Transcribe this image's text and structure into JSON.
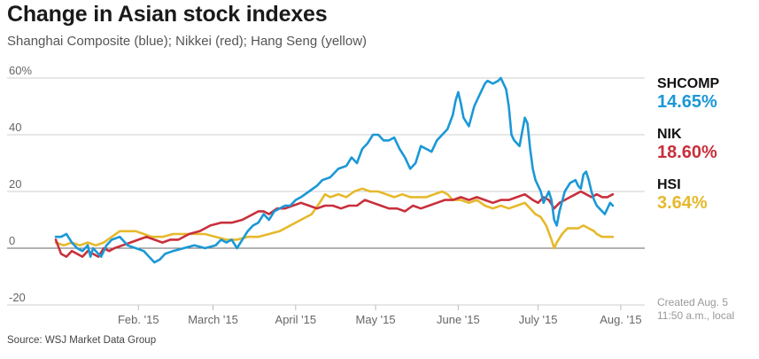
{
  "chart_data": {
    "type": "line",
    "title": "Change in Asian stock indexes",
    "subtitle": "Shanghai Composite (blue); Nikkei (red); Hang Seng (yellow)",
    "ylim": [
      -20,
      60
    ],
    "y_ticks": [
      60,
      40,
      20,
      0,
      -20
    ],
    "y_tick_labels": [
      "60%",
      "40",
      "20",
      "0",
      "-20"
    ],
    "x_range": [
      0,
      221
    ],
    "x_ticks": [
      {
        "label": "Feb. '15",
        "x": 31
      },
      {
        "label": "March '15",
        "x": 59
      },
      {
        "label": "April '15",
        "x": 90
      },
      {
        "label": "May '15",
        "x": 120
      },
      {
        "label": "June '15",
        "x": 151
      },
      {
        "label": "July '15",
        "x": 181
      },
      {
        "label": "Aug. '15",
        "x": 212
      }
    ],
    "series": [
      {
        "name": "SHCOMP",
        "color": "#1b98d6",
        "points": [
          [
            0,
            4
          ],
          [
            2,
            4
          ],
          [
            4,
            5
          ],
          [
            6,
            2
          ],
          [
            8,
            0
          ],
          [
            10,
            -1
          ],
          [
            12,
            1
          ],
          [
            13,
            -3
          ],
          [
            14,
            0
          ],
          [
            16,
            -2
          ],
          [
            17,
            -3
          ],
          [
            19,
            1
          ],
          [
            21,
            3
          ],
          [
            24,
            4
          ],
          [
            27,
            1
          ],
          [
            30,
            0
          ],
          [
            33,
            -1
          ],
          [
            35,
            -3
          ],
          [
            37,
            -5
          ],
          [
            39,
            -4
          ],
          [
            41,
            -2
          ],
          [
            44,
            -1
          ],
          [
            48,
            0
          ],
          [
            52,
            1
          ],
          [
            56,
            0
          ],
          [
            60,
            1
          ],
          [
            62,
            3
          ],
          [
            64,
            2
          ],
          [
            66,
            3
          ],
          [
            68,
            0
          ],
          [
            70,
            3
          ],
          [
            72,
            6
          ],
          [
            74,
            8
          ],
          [
            76,
            9
          ],
          [
            78,
            12
          ],
          [
            80,
            10
          ],
          [
            82,
            13
          ],
          [
            84,
            14
          ],
          [
            86,
            15
          ],
          [
            88,
            15
          ],
          [
            90,
            17
          ],
          [
            92,
            18
          ],
          [
            95,
            20
          ],
          [
            98,
            22
          ],
          [
            100,
            24
          ],
          [
            103,
            25
          ],
          [
            106,
            28
          ],
          [
            109,
            29
          ],
          [
            111,
            32
          ],
          [
            113,
            30
          ],
          [
            115,
            35
          ],
          [
            117,
            37
          ],
          [
            119,
            40
          ],
          [
            121,
            40
          ],
          [
            123,
            38
          ],
          [
            125,
            38
          ],
          [
            127,
            39
          ],
          [
            129,
            35
          ],
          [
            131,
            32
          ],
          [
            133,
            28
          ],
          [
            135,
            30
          ],
          [
            137,
            36
          ],
          [
            139,
            35
          ],
          [
            141,
            34
          ],
          [
            143,
            38
          ],
          [
            145,
            40
          ],
          [
            147,
            42
          ],
          [
            149,
            47
          ],
          [
            150,
            52
          ],
          [
            151,
            55
          ],
          [
            152,
            51
          ],
          [
            153,
            46
          ],
          [
            155,
            43
          ],
          [
            157,
            50
          ],
          [
            159,
            54
          ],
          [
            161,
            58
          ],
          [
            162,
            59
          ],
          [
            164,
            58
          ],
          [
            166,
            59
          ],
          [
            167,
            60
          ],
          [
            169,
            56
          ],
          [
            170,
            50
          ],
          [
            171,
            40
          ],
          [
            172,
            38
          ],
          [
            174,
            36
          ],
          [
            176,
            46
          ],
          [
            177,
            44
          ],
          [
            178,
            35
          ],
          [
            179,
            28
          ],
          [
            180,
            24
          ],
          [
            182,
            20
          ],
          [
            183,
            16
          ],
          [
            185,
            20
          ],
          [
            186,
            17
          ],
          [
            187,
            10
          ],
          [
            188,
            8
          ],
          [
            189,
            13
          ],
          [
            191,
            20
          ],
          [
            193,
            23
          ],
          [
            195,
            24
          ],
          [
            196,
            22
          ],
          [
            197,
            21
          ],
          [
            198,
            26
          ],
          [
            199,
            27
          ],
          [
            200,
            24
          ],
          [
            201,
            20
          ],
          [
            202,
            17
          ],
          [
            203,
            15
          ],
          [
            204,
            14
          ],
          [
            205,
            13
          ],
          [
            206,
            12
          ],
          [
            207,
            14
          ],
          [
            208,
            16
          ],
          [
            209,
            15
          ]
        ]
      },
      {
        "name": "NIK",
        "color": "#c8303c",
        "points": [
          [
            0,
            3
          ],
          [
            2,
            -2
          ],
          [
            4,
            -3
          ],
          [
            6,
            -1
          ],
          [
            8,
            -2
          ],
          [
            10,
            -3
          ],
          [
            12,
            -1
          ],
          [
            14,
            -2
          ],
          [
            16,
            -3
          ],
          [
            18,
            0
          ],
          [
            20,
            -1
          ],
          [
            22,
            0
          ],
          [
            25,
            1
          ],
          [
            28,
            2
          ],
          [
            31,
            3
          ],
          [
            34,
            4
          ],
          [
            37,
            3
          ],
          [
            40,
            2
          ],
          [
            43,
            3
          ],
          [
            46,
            3
          ],
          [
            50,
            5
          ],
          [
            54,
            6
          ],
          [
            58,
            8
          ],
          [
            62,
            9
          ],
          [
            66,
            9
          ],
          [
            70,
            10
          ],
          [
            74,
            12
          ],
          [
            76,
            13
          ],
          [
            78,
            13
          ],
          [
            80,
            12
          ],
          [
            83,
            14
          ],
          [
            86,
            14
          ],
          [
            89,
            15
          ],
          [
            92,
            16
          ],
          [
            95,
            15
          ],
          [
            98,
            14
          ],
          [
            101,
            15
          ],
          [
            104,
            15
          ],
          [
            107,
            14
          ],
          [
            110,
            15
          ],
          [
            113,
            15
          ],
          [
            116,
            17
          ],
          [
            119,
            16
          ],
          [
            122,
            15
          ],
          [
            125,
            14
          ],
          [
            128,
            14
          ],
          [
            131,
            13
          ],
          [
            134,
            15
          ],
          [
            137,
            14
          ],
          [
            140,
            15
          ],
          [
            143,
            16
          ],
          [
            146,
            17
          ],
          [
            149,
            17
          ],
          [
            152,
            18
          ],
          [
            155,
            17
          ],
          [
            158,
            18
          ],
          [
            161,
            17
          ],
          [
            164,
            16
          ],
          [
            167,
            17
          ],
          [
            170,
            17
          ],
          [
            173,
            18
          ],
          [
            176,
            19
          ],
          [
            179,
            17
          ],
          [
            181,
            16
          ],
          [
            183,
            18
          ],
          [
            185,
            17
          ],
          [
            187,
            14
          ],
          [
            189,
            16
          ],
          [
            191,
            17
          ],
          [
            193,
            18
          ],
          [
            195,
            19
          ],
          [
            197,
            20
          ],
          [
            199,
            19
          ],
          [
            201,
            18
          ],
          [
            203,
            19
          ],
          [
            205,
            18
          ],
          [
            207,
            18
          ],
          [
            209,
            19
          ]
        ]
      },
      {
        "name": "HSI",
        "color": "#e6b92c",
        "points": [
          [
            0,
            2
          ],
          [
            3,
            1
          ],
          [
            6,
            2
          ],
          [
            9,
            1
          ],
          [
            12,
            2
          ],
          [
            15,
            1
          ],
          [
            18,
            2
          ],
          [
            21,
            4
          ],
          [
            24,
            6
          ],
          [
            27,
            6
          ],
          [
            30,
            6
          ],
          [
            33,
            5
          ],
          [
            36,
            4
          ],
          [
            40,
            4
          ],
          [
            44,
            5
          ],
          [
            48,
            5
          ],
          [
            52,
            5
          ],
          [
            56,
            5
          ],
          [
            60,
            4
          ],
          [
            64,
            3
          ],
          [
            68,
            3
          ],
          [
            72,
            4
          ],
          [
            76,
            4
          ],
          [
            80,
            5
          ],
          [
            84,
            6
          ],
          [
            88,
            8
          ],
          [
            92,
            10
          ],
          [
            96,
            12
          ],
          [
            99,
            16
          ],
          [
            101,
            19
          ],
          [
            103,
            18
          ],
          [
            106,
            19
          ],
          [
            109,
            18
          ],
          [
            112,
            20
          ],
          [
            115,
            21
          ],
          [
            118,
            20
          ],
          [
            121,
            20
          ],
          [
            124,
            19
          ],
          [
            127,
            18
          ],
          [
            130,
            19
          ],
          [
            133,
            18
          ],
          [
            136,
            18
          ],
          [
            139,
            18
          ],
          [
            142,
            19
          ],
          [
            145,
            20
          ],
          [
            147,
            19
          ],
          [
            149,
            17
          ],
          [
            152,
            17
          ],
          [
            155,
            16
          ],
          [
            158,
            17
          ],
          [
            161,
            15
          ],
          [
            164,
            14
          ],
          [
            167,
            15
          ],
          [
            170,
            14
          ],
          [
            173,
            15
          ],
          [
            176,
            16
          ],
          [
            178,
            14
          ],
          [
            180,
            12
          ],
          [
            182,
            11
          ],
          [
            184,
            8
          ],
          [
            186,
            3
          ],
          [
            187,
            0
          ],
          [
            188,
            2
          ],
          [
            190,
            5
          ],
          [
            192,
            7
          ],
          [
            194,
            7
          ],
          [
            196,
            7
          ],
          [
            198,
            8
          ],
          [
            200,
            7
          ],
          [
            202,
            6
          ],
          [
            203,
            5
          ],
          [
            205,
            4
          ],
          [
            207,
            4
          ],
          [
            209,
            4
          ]
        ]
      }
    ]
  },
  "legend": [
    {
      "symbol": "SHCOMP",
      "value": "14.65%",
      "color": "#1b98d6"
    },
    {
      "symbol": "NIK",
      "value": "18.60%",
      "color": "#c8303c"
    },
    {
      "symbol": "HSI",
      "value": "3.64%",
      "color": "#e6b92c"
    }
  ],
  "note": {
    "line1": "Created Aug. 5",
    "line2": "11:50 a.m., local"
  },
  "source": "Source: WSJ Market Data Group"
}
